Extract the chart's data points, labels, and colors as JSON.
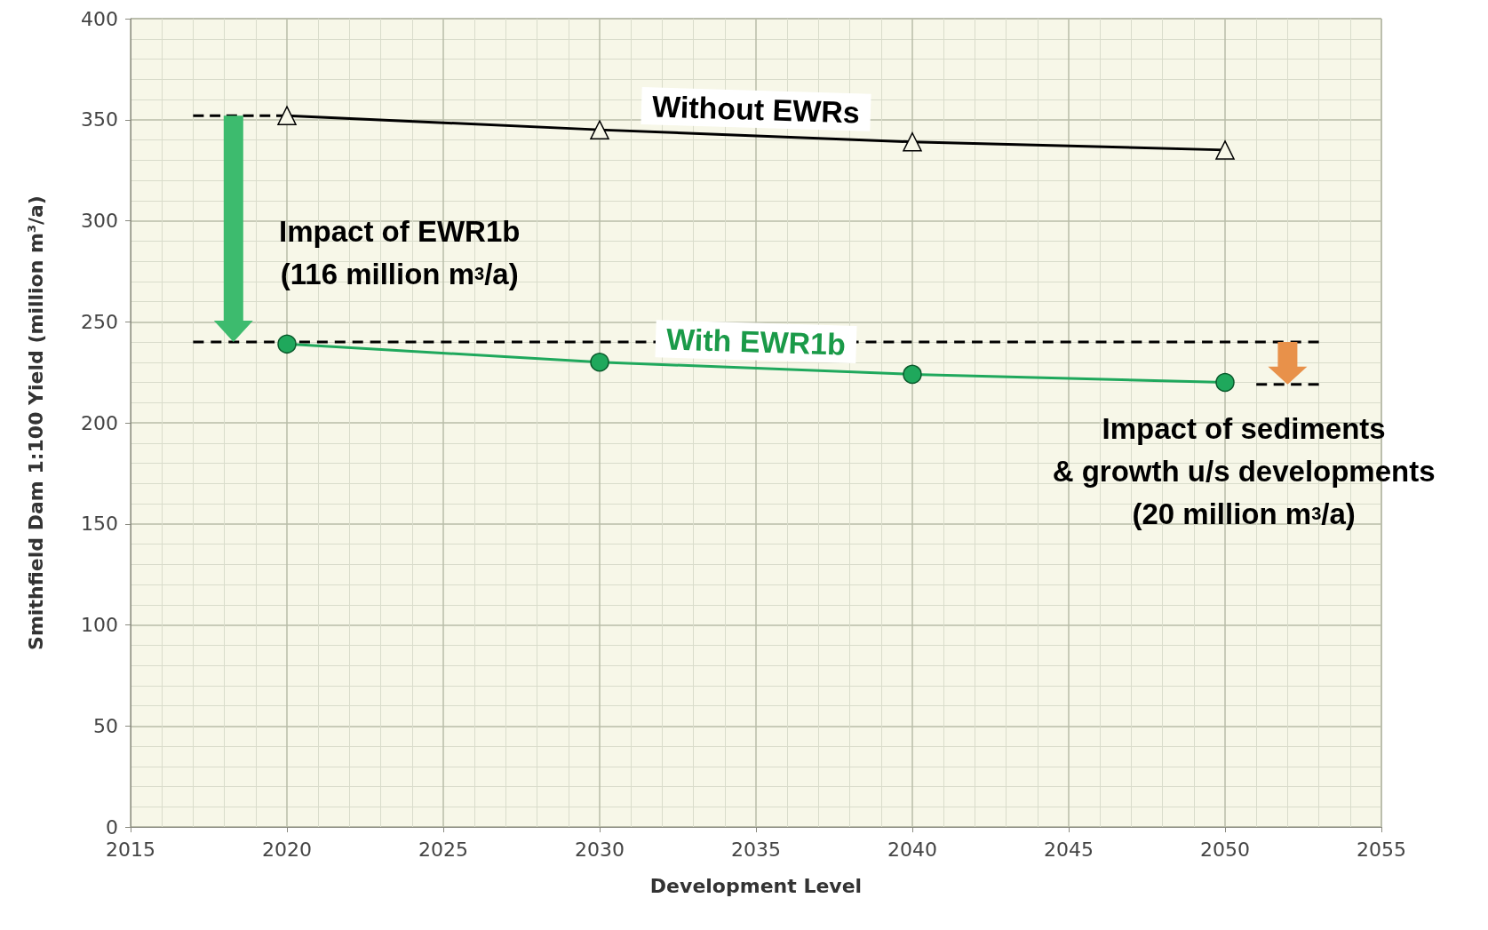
{
  "chart_data": {
    "type": "line",
    "xlabel": "Development Level",
    "ylabel": "Smithfield Dam 1:100 Yield (million m$^{3}$/a)",
    "x": [
      2020,
      2030,
      2040,
      2050
    ],
    "series": [
      {
        "name": "Without EWRs",
        "color": "#000000",
        "marker": "triangle",
        "values": [
          352,
          345,
          339,
          335
        ]
      },
      {
        "name": "With EWR1b",
        "color": "#1fa85c",
        "marker": "circle",
        "values": [
          239,
          230,
          224,
          220
        ]
      },
      {
        "x": [
          2017,
          2020
        ],
        "values": [
          352,
          352
        ],
        "color": "#000000",
        "line_style": "dashed",
        "marker": "none"
      },
      {
        "x": [
          2017,
          2053
        ],
        "values": [
          240,
          240
        ],
        "color": "#000000",
        "line_style": "dashed",
        "marker": "none"
      },
      {
        "x": [
          2051,
          2053
        ],
        "values": [
          219,
          219
        ],
        "color": "#000000",
        "line_style": "dashed",
        "marker": "none"
      }
    ],
    "xlim": [
      2015,
      2055
    ],
    "xticks": [
      2015,
      2020,
      2025,
      2030,
      2035,
      2040,
      2045,
      2050,
      2055
    ],
    "ylim": [
      0,
      400
    ],
    "yticks": [
      0,
      50,
      100,
      150,
      200,
      250,
      300,
      350,
      400
    ],
    "grid": true,
    "annotations": [
      "Impact of EWR1b\n(116 million m$^{3}$/a)",
      "Impact of sediments\n& growth u/s developments\n(20 million m$^{3}$/a)"
    ]
  }
}
